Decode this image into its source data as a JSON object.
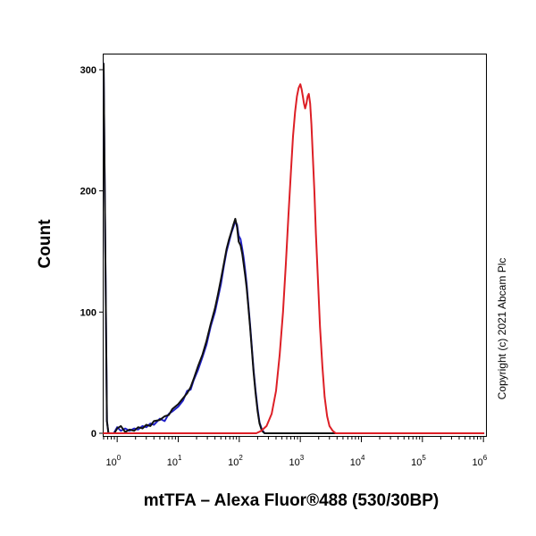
{
  "chart_data": {
    "type": "line",
    "title": "",
    "xlabel": "mtTFA – Alexa Fluor®488 (530/30BP)",
    "ylabel": "Count",
    "x_scale": "log",
    "x_ticks": [
      {
        "value": 1,
        "base": "10",
        "exp": "0"
      },
      {
        "value": 10,
        "base": "10",
        "exp": "1"
      },
      {
        "value": 100,
        "base": "10",
        "exp": "2"
      },
      {
        "value": 1000,
        "base": "10",
        "exp": "3"
      },
      {
        "value": 10000,
        "base": "10",
        "exp": "4"
      },
      {
        "value": 100000,
        "base": "10",
        "exp": "5"
      },
      {
        "value": 1000000,
        "base": "10",
        "exp": "6"
      }
    ],
    "y_ticks": [
      0,
      100,
      200,
      300
    ],
    "xlim": [
      0.6,
      1100000
    ],
    "ylim": [
      0,
      310
    ],
    "grid": false,
    "legend": "none",
    "annotation": "Copyright (c) 2021 Abcam Plc",
    "series": [
      {
        "color": "#2020c8",
        "points": [
          [
            0.6,
            305
          ],
          [
            0.64,
            150
          ],
          [
            0.68,
            10
          ],
          [
            0.72,
            0
          ],
          [
            0.88,
            0
          ],
          [
            1.0,
            5
          ],
          [
            1.15,
            2
          ],
          [
            1.35,
            4
          ],
          [
            1.6,
            2
          ],
          [
            1.9,
            4
          ],
          [
            2.2,
            3
          ],
          [
            2.6,
            6
          ],
          [
            3.0,
            5
          ],
          [
            3.5,
            8
          ],
          [
            4.0,
            7
          ],
          [
            5.0,
            12
          ],
          [
            6.0,
            10
          ],
          [
            7.0,
            16
          ],
          [
            8.0,
            18
          ],
          [
            10,
            22
          ],
          [
            12,
            27
          ],
          [
            14,
            35
          ],
          [
            16,
            36
          ],
          [
            18,
            44
          ],
          [
            21,
            52
          ],
          [
            25,
            63
          ],
          [
            29,
            73
          ],
          [
            34,
            88
          ],
          [
            40,
            100
          ],
          [
            45,
            112
          ],
          [
            50,
            123
          ],
          [
            56,
            138
          ],
          [
            62,
            150
          ],
          [
            68,
            158
          ],
          [
            74,
            165
          ],
          [
            80,
            170
          ],
          [
            86,
            175
          ],
          [
            92,
            172
          ],
          [
            98,
            163
          ],
          [
            105,
            160
          ],
          [
            112,
            152
          ],
          [
            118,
            145
          ],
          [
            125,
            134
          ],
          [
            132,
            123
          ],
          [
            140,
            108
          ],
          [
            150,
            90
          ],
          [
            160,
            72
          ],
          [
            172,
            52
          ],
          [
            185,
            35
          ],
          [
            200,
            20
          ],
          [
            215,
            9
          ],
          [
            235,
            3
          ],
          [
            260,
            0
          ],
          [
            1000000,
            0
          ]
        ]
      },
      {
        "color": "#111111",
        "points": [
          [
            0.6,
            305
          ],
          [
            0.64,
            150
          ],
          [
            0.68,
            10
          ],
          [
            0.72,
            0
          ],
          [
            0.9,
            0
          ],
          [
            1.0,
            4
          ],
          [
            1.15,
            6
          ],
          [
            1.35,
            1
          ],
          [
            1.6,
            3
          ],
          [
            1.9,
            2
          ],
          [
            2.2,
            5
          ],
          [
            2.6,
            4
          ],
          [
            3.0,
            7
          ],
          [
            3.5,
            6
          ],
          [
            4.0,
            10
          ],
          [
            5.0,
            11
          ],
          [
            6.0,
            14
          ],
          [
            7.0,
            15
          ],
          [
            8.0,
            20
          ],
          [
            10,
            24
          ],
          [
            12,
            29
          ],
          [
            14,
            33
          ],
          [
            16,
            38
          ],
          [
            18,
            45
          ],
          [
            21,
            55
          ],
          [
            25,
            65
          ],
          [
            29,
            76
          ],
          [
            34,
            90
          ],
          [
            40,
            103
          ],
          [
            45,
            115
          ],
          [
            50,
            127
          ],
          [
            56,
            140
          ],
          [
            62,
            152
          ],
          [
            68,
            160
          ],
          [
            74,
            166
          ],
          [
            80,
            172
          ],
          [
            86,
            177
          ],
          [
            92,
            170
          ],
          [
            98,
            158
          ],
          [
            105,
            155
          ],
          [
            112,
            148
          ],
          [
            118,
            140
          ],
          [
            125,
            130
          ],
          [
            132,
            120
          ],
          [
            140,
            106
          ],
          [
            150,
            88
          ],
          [
            160,
            70
          ],
          [
            172,
            50
          ],
          [
            185,
            33
          ],
          [
            200,
            18
          ],
          [
            215,
            8
          ],
          [
            235,
            2
          ],
          [
            260,
            0
          ],
          [
            1000000,
            0
          ]
        ]
      },
      {
        "color": "#dd1f26",
        "points": [
          [
            0.6,
            0
          ],
          [
            190,
            0
          ],
          [
            230,
            2
          ],
          [
            280,
            6
          ],
          [
            340,
            16
          ],
          [
            400,
            35
          ],
          [
            460,
            65
          ],
          [
            520,
            100
          ],
          [
            580,
            140
          ],
          [
            640,
            180
          ],
          [
            700,
            215
          ],
          [
            760,
            245
          ],
          [
            820,
            265
          ],
          [
            880,
            278
          ],
          [
            940,
            285
          ],
          [
            1000,
            288
          ],
          [
            1050,
            284
          ],
          [
            1100,
            278
          ],
          [
            1150,
            272
          ],
          [
            1200,
            268
          ],
          [
            1260,
            272
          ],
          [
            1320,
            278
          ],
          [
            1380,
            280
          ],
          [
            1450,
            272
          ],
          [
            1520,
            255
          ],
          [
            1600,
            230
          ],
          [
            1700,
            200
          ],
          [
            1800,
            165
          ],
          [
            1950,
            125
          ],
          [
            2100,
            88
          ],
          [
            2300,
            55
          ],
          [
            2500,
            30
          ],
          [
            2750,
            14
          ],
          [
            3000,
            6
          ],
          [
            3400,
            2
          ],
          [
            3800,
            0
          ],
          [
            1000000,
            0
          ]
        ]
      }
    ]
  }
}
